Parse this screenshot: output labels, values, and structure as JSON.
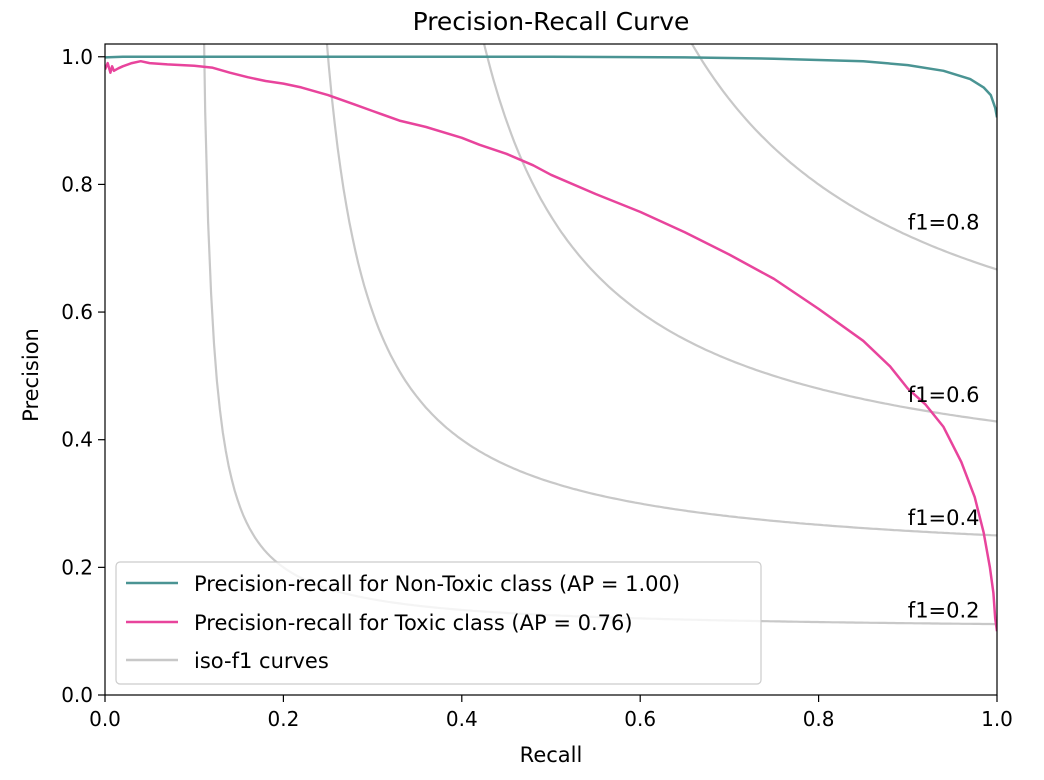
{
  "chart_data": {
    "type": "line",
    "title": "Precision-Recall Curve",
    "xlabel": "Recall",
    "ylabel": "Precision",
    "xlim": [
      0.0,
      1.0
    ],
    "ylim": [
      0.0,
      1.02
    ],
    "xticks": [
      "0.0",
      "0.2",
      "0.4",
      "0.6",
      "0.8",
      "1.0"
    ],
    "yticks": [
      "0.0",
      "0.2",
      "0.4",
      "0.6",
      "0.8",
      "1.0"
    ],
    "grid": false,
    "legend_position": "lower-left",
    "series": [
      {
        "name": "Precision-recall for Non-Toxic class (AP = 1.00)",
        "color": "#4a9493",
        "x": [
          0.0,
          0.02,
          0.1,
          0.3,
          0.5,
          0.65,
          0.75,
          0.85,
          0.9,
          0.94,
          0.97,
          0.985,
          0.993,
          0.998,
          1.0
        ],
        "y": [
          0.999,
          1.0,
          1.0,
          1.0,
          1.0,
          0.999,
          0.997,
          0.993,
          0.987,
          0.978,
          0.965,
          0.952,
          0.94,
          0.92,
          0.905
        ]
      },
      {
        "name": "Precision-recall for Toxic class (AP = 0.76)",
        "color": "#e8449c",
        "x": [
          0.0,
          0.003,
          0.006,
          0.008,
          0.01,
          0.015,
          0.02,
          0.03,
          0.04,
          0.05,
          0.07,
          0.1,
          0.12,
          0.14,
          0.16,
          0.18,
          0.2,
          0.22,
          0.25,
          0.28,
          0.3,
          0.33,
          0.36,
          0.4,
          0.42,
          0.45,
          0.48,
          0.5,
          0.55,
          0.6,
          0.65,
          0.7,
          0.75,
          0.8,
          0.85,
          0.88,
          0.9,
          0.92,
          0.94,
          0.96,
          0.975,
          0.985,
          0.992,
          0.996,
          0.998,
          1.0
        ],
        "y": [
          0.98,
          0.99,
          0.975,
          0.985,
          0.978,
          0.982,
          0.985,
          0.99,
          0.993,
          0.99,
          0.988,
          0.986,
          0.983,
          0.975,
          0.968,
          0.962,
          0.958,
          0.952,
          0.94,
          0.925,
          0.915,
          0.9,
          0.89,
          0.873,
          0.862,
          0.848,
          0.83,
          0.815,
          0.785,
          0.757,
          0.725,
          0.69,
          0.652,
          0.605,
          0.555,
          0.515,
          0.48,
          0.455,
          0.42,
          0.365,
          0.31,
          0.255,
          0.2,
          0.16,
          0.12,
          0.1
        ]
      }
    ],
    "iso_f1": {
      "legend_label": "iso-f1 curves",
      "color": "#c8c8c8",
      "values": [
        0.2,
        0.4,
        0.6,
        0.8
      ],
      "labels": [
        "f1=0.2",
        "f1=0.4",
        "f1=0.6",
        "f1=0.8"
      ],
      "label_x": 0.9
    }
  }
}
